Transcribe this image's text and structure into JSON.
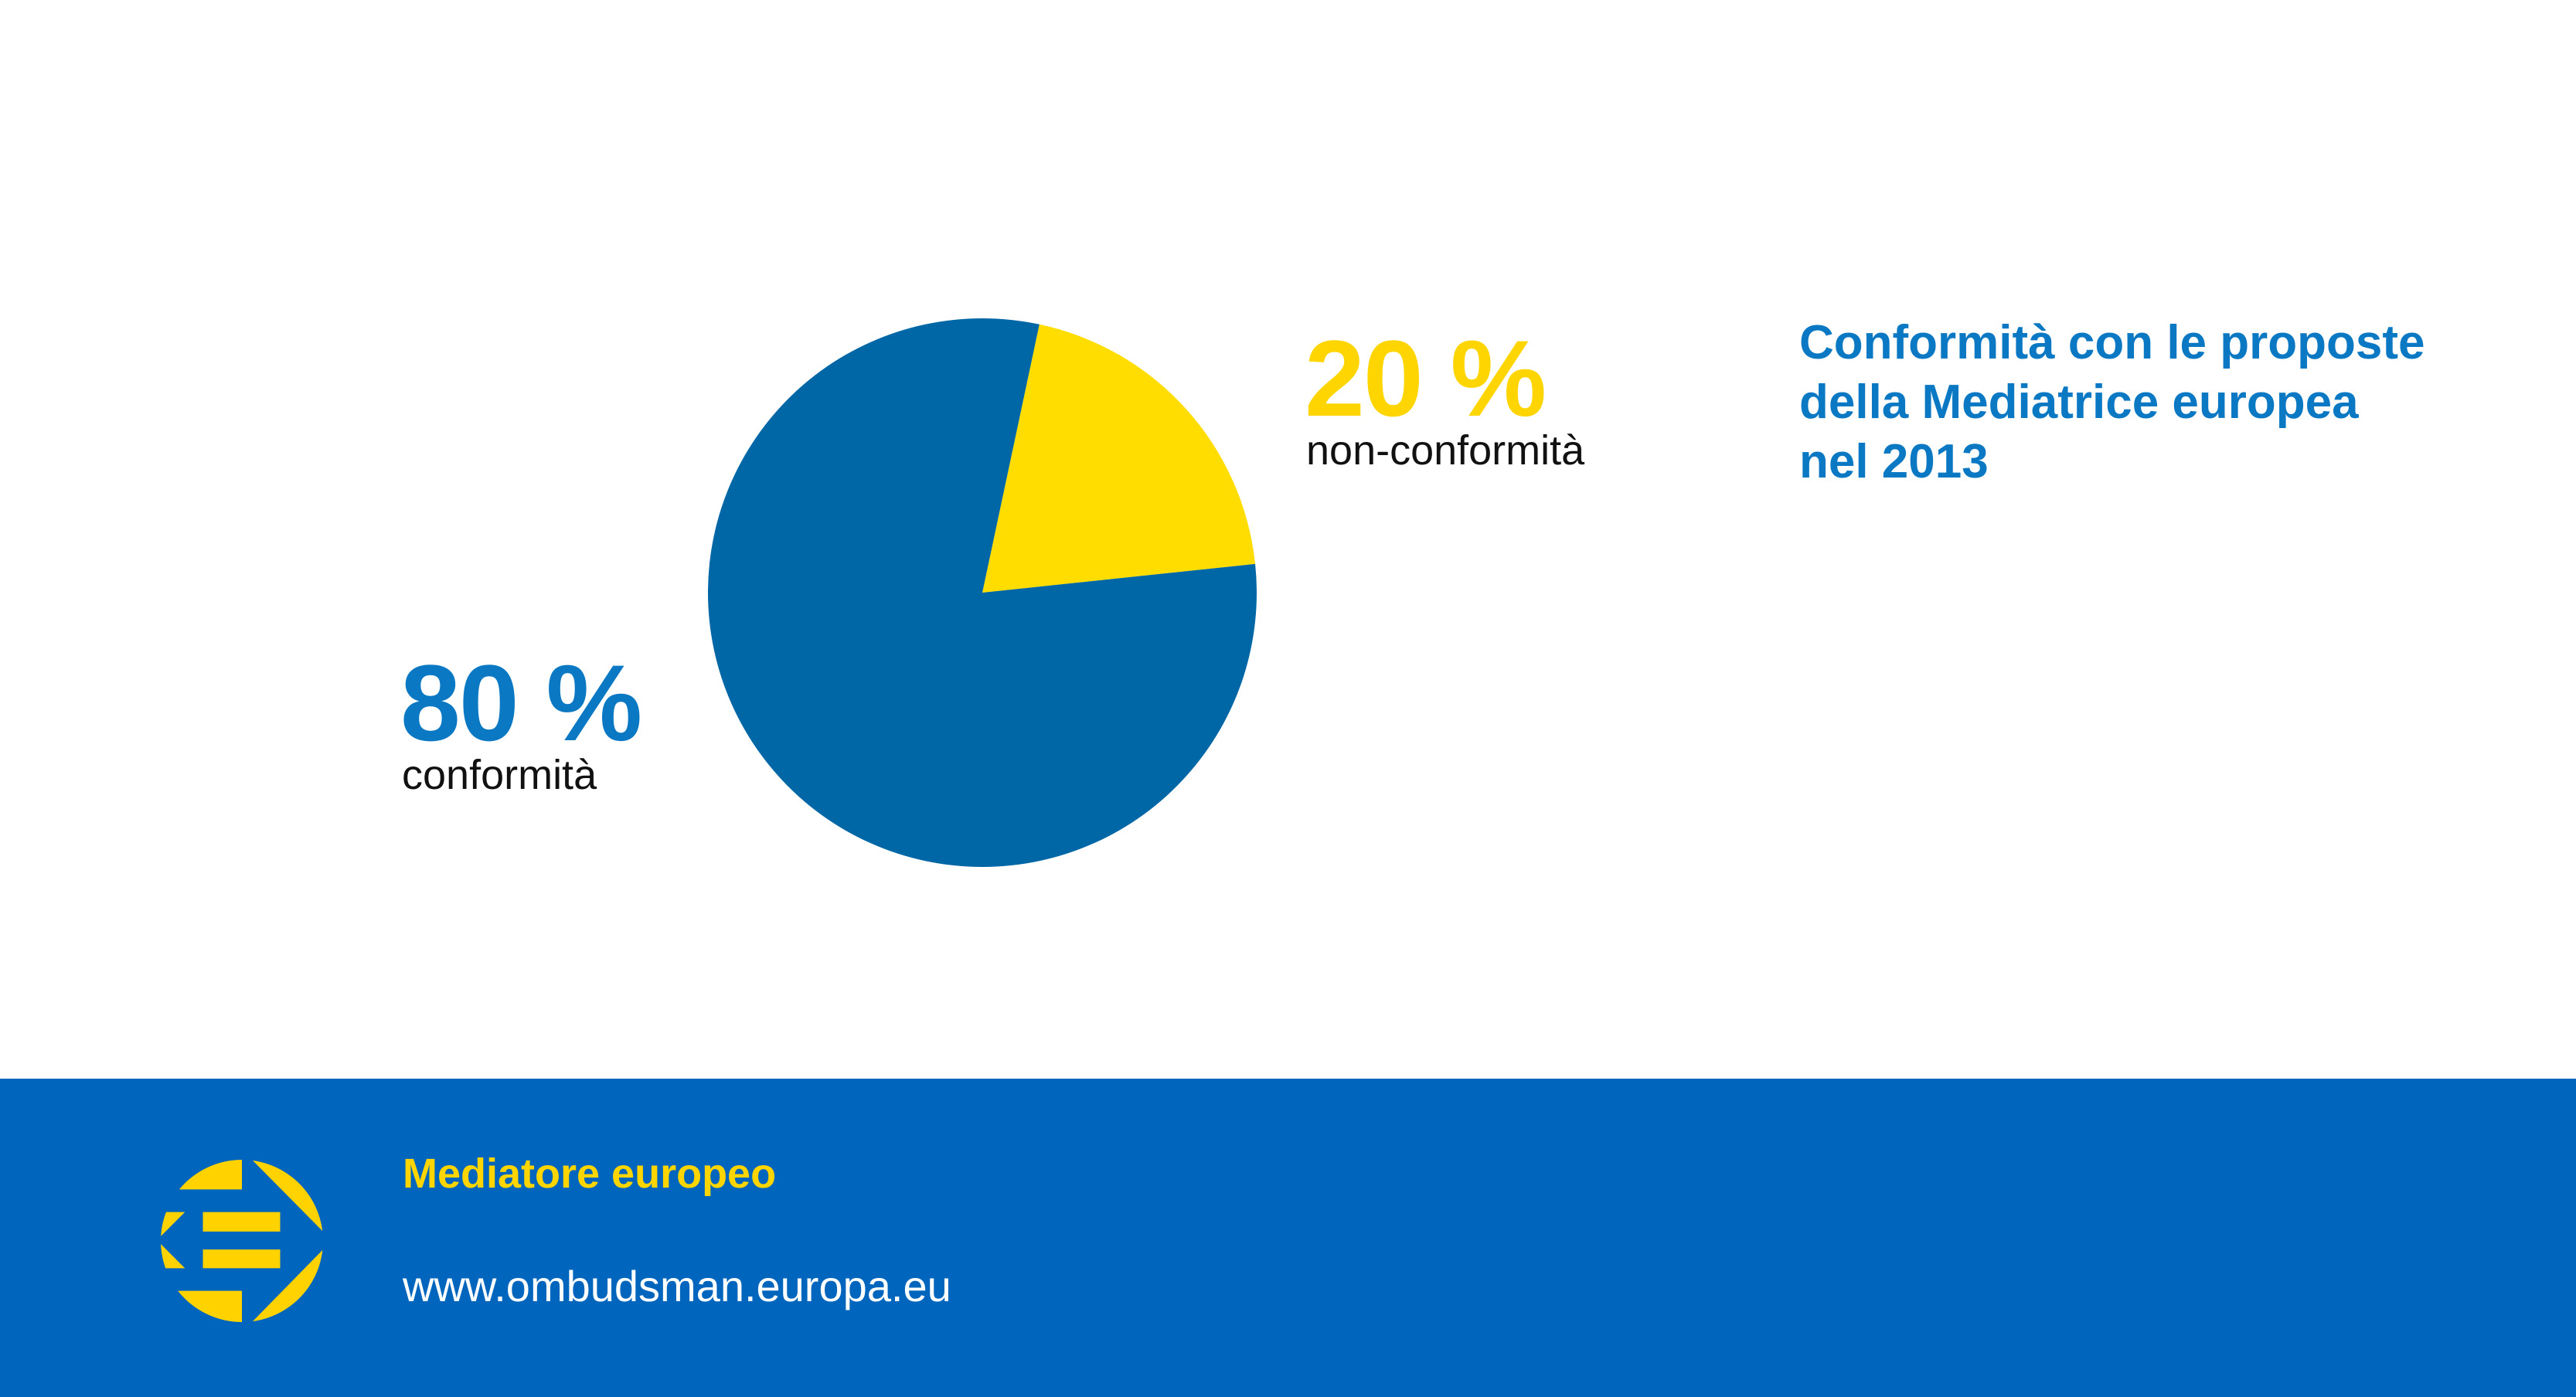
{
  "chart_data": {
    "type": "pie",
    "title": "Conformità con le proposte della Mediatrice europea nel 2013",
    "title_lines": [
      "Conformità con le proposte",
      "della Mediatrice europea",
      "nel 2013"
    ],
    "slices": [
      {
        "label": "non-conformità",
        "value": 20,
        "value_label": "20 %",
        "color": "#ffdd00"
      },
      {
        "label": "conformità",
        "value": 80,
        "value_label": "80 %",
        "color": "#0067a6"
      }
    ],
    "value_label_colors": {
      "non-conformità": "#ffd500",
      "conformità": "#0a78c2"
    }
  },
  "footer": {
    "organization": "Mediatore europeo",
    "url": "www.ombudsman.europa.eu",
    "background": "#0065bd",
    "logo": "european-ombudsman-logo"
  }
}
